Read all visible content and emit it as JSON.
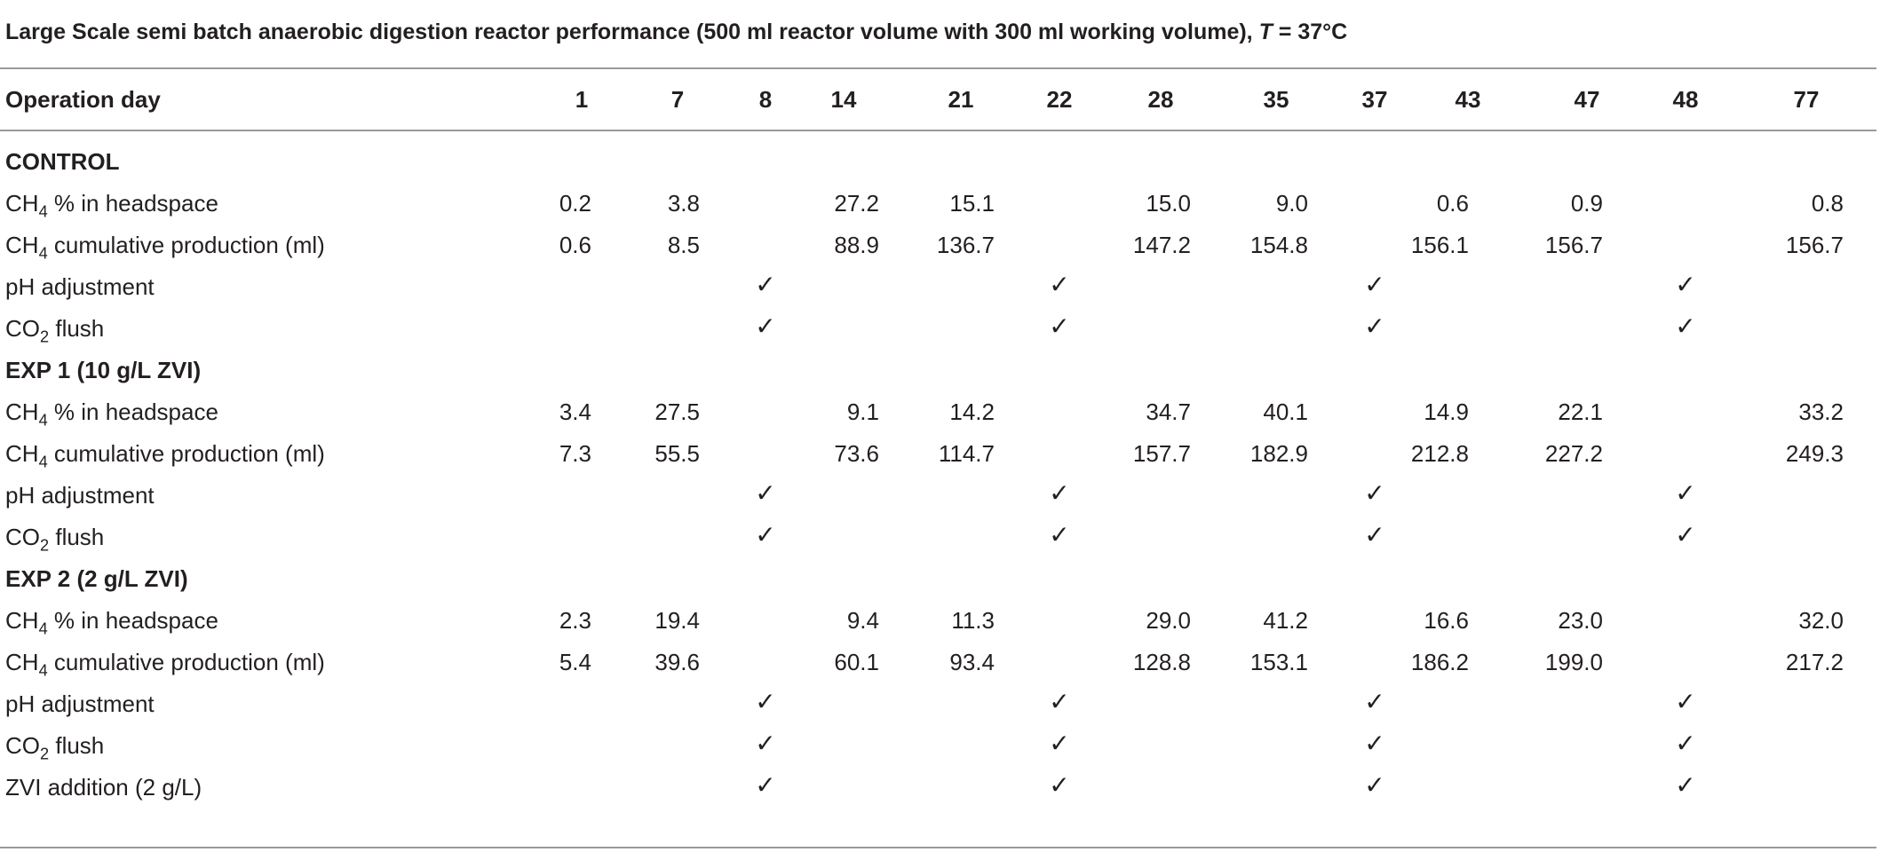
{
  "caption": {
    "prefix": "Large Scale semi batch anaerobic digestion reactor performance (500 ml reactor volume with 300 ml working volume), ",
    "t_var": "T",
    "t_val": " = 37°C"
  },
  "header": {
    "label": "Operation day",
    "days": [
      "1",
      "7",
      "8",
      "14",
      "21",
      "22",
      "28",
      "35",
      "37",
      "43",
      "47",
      "48",
      "77"
    ]
  },
  "check_glyph": "✓",
  "sections": [
    {
      "title": "CONTROL",
      "rows": [
        {
          "label_main": "CH",
          "label_sub": "4",
          "label_rest": " % in headspace",
          "values": [
            "0.2",
            "3.8",
            "",
            "27.2",
            "15.1",
            "",
            "15.0",
            "9.0",
            "",
            "0.6",
            "0.9",
            "",
            "0.8"
          ]
        },
        {
          "label_main": "CH",
          "label_sub": "4",
          "label_rest": " cumulative production (ml)",
          "values": [
            "0.6",
            "8.5",
            "",
            "88.9",
            "136.7",
            "",
            "147.2",
            "154.8",
            "",
            "156.1",
            "156.7",
            "",
            "156.7"
          ]
        },
        {
          "label_main": "pH adjustment",
          "label_sub": "",
          "label_rest": "",
          "checks": [
            false,
            false,
            true,
            false,
            false,
            true,
            false,
            false,
            true,
            false,
            false,
            true,
            false
          ]
        },
        {
          "label_main": "CO",
          "label_sub": "2",
          "label_rest": " flush",
          "checks": [
            false,
            false,
            true,
            false,
            false,
            true,
            false,
            false,
            true,
            false,
            false,
            true,
            false
          ]
        }
      ]
    },
    {
      "title": "EXP 1 (10 g/L ZVI)",
      "rows": [
        {
          "label_main": "CH",
          "label_sub": "4",
          "label_rest": " % in headspace",
          "values": [
            "3.4",
            "27.5",
            "",
            "9.1",
            "14.2",
            "",
            "34.7",
            "40.1",
            "",
            "14.9",
            "22.1",
            "",
            "33.2"
          ]
        },
        {
          "label_main": "CH",
          "label_sub": "4",
          "label_rest": " cumulative production (ml)",
          "values": [
            "7.3",
            "55.5",
            "",
            "73.6",
            "114.7",
            "",
            "157.7",
            "182.9",
            "",
            "212.8",
            "227.2",
            "",
            "249.3"
          ]
        },
        {
          "label_main": "pH adjustment",
          "label_sub": "",
          "label_rest": "",
          "checks": [
            false,
            false,
            true,
            false,
            false,
            true,
            false,
            false,
            true,
            false,
            false,
            true,
            false
          ]
        },
        {
          "label_main": "CO",
          "label_sub": "2",
          "label_rest": " flush",
          "checks": [
            false,
            false,
            true,
            false,
            false,
            true,
            false,
            false,
            true,
            false,
            false,
            true,
            false
          ]
        }
      ]
    },
    {
      "title": "EXP 2 (2 g/L ZVI)",
      "rows": [
        {
          "label_main": "CH",
          "label_sub": "4",
          "label_rest": " % in headspace",
          "values": [
            "2.3",
            "19.4",
            "",
            "9.4",
            "11.3",
            "",
            "29.0",
            "41.2",
            "",
            "16.6",
            "23.0",
            "",
            "32.0"
          ]
        },
        {
          "label_main": "CH",
          "label_sub": "4",
          "label_rest": " cumulative production (ml)",
          "values": [
            "5.4",
            "39.6",
            "",
            "60.1",
            "93.4",
            "",
            "128.8",
            "153.1",
            "",
            "186.2",
            "199.0",
            "",
            "217.2"
          ]
        },
        {
          "label_main": "pH adjustment",
          "label_sub": "",
          "label_rest": "",
          "checks": [
            false,
            false,
            true,
            false,
            false,
            true,
            false,
            false,
            true,
            false,
            false,
            true,
            false
          ]
        },
        {
          "label_main": "CO",
          "label_sub": "2",
          "label_rest": " flush",
          "checks": [
            false,
            false,
            true,
            false,
            false,
            true,
            false,
            false,
            true,
            false,
            false,
            true,
            false
          ]
        },
        {
          "label_main": "ZVI addition (2 g/L)",
          "label_sub": "",
          "label_rest": "",
          "checks": [
            false,
            false,
            true,
            false,
            false,
            true,
            false,
            false,
            true,
            false,
            false,
            true,
            false
          ]
        }
      ]
    }
  ]
}
